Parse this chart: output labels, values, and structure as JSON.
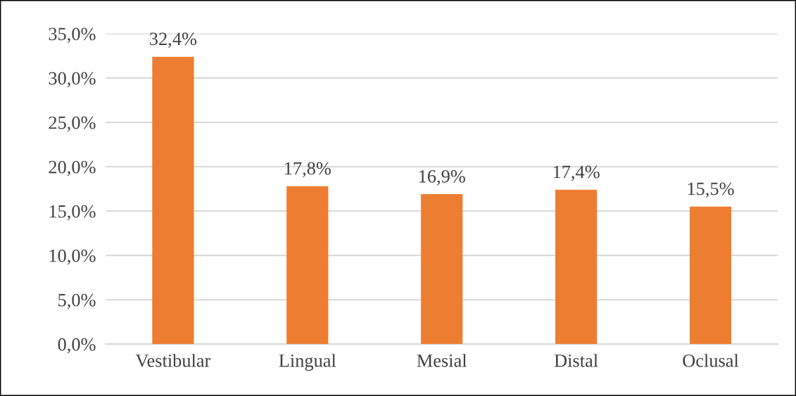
{
  "chart_data": {
    "type": "bar",
    "categories": [
      "Vestibular",
      "Lingual",
      "Mesial",
      "Distal",
      "Oclusal"
    ],
    "values": [
      32.4,
      17.8,
      16.9,
      17.4,
      15.5
    ],
    "value_labels": [
      "32,4%",
      "17,8%",
      "16,9%",
      "17,4%",
      "15,5%"
    ],
    "color": "#ed7d31",
    "ylim": [
      0,
      35
    ],
    "yticks": [
      {
        "value": 0,
        "label": "0,0%"
      },
      {
        "value": 5,
        "label": "5,0%"
      },
      {
        "value": 10,
        "label": "10,0%"
      },
      {
        "value": 15,
        "label": "15,0%"
      },
      {
        "value": 20,
        "label": "20,0%"
      },
      {
        "value": 25,
        "label": "25,0%"
      },
      {
        "value": 30,
        "label": "30,0%"
      },
      {
        "value": 35,
        "label": "35,0%"
      }
    ],
    "grid": "y"
  }
}
